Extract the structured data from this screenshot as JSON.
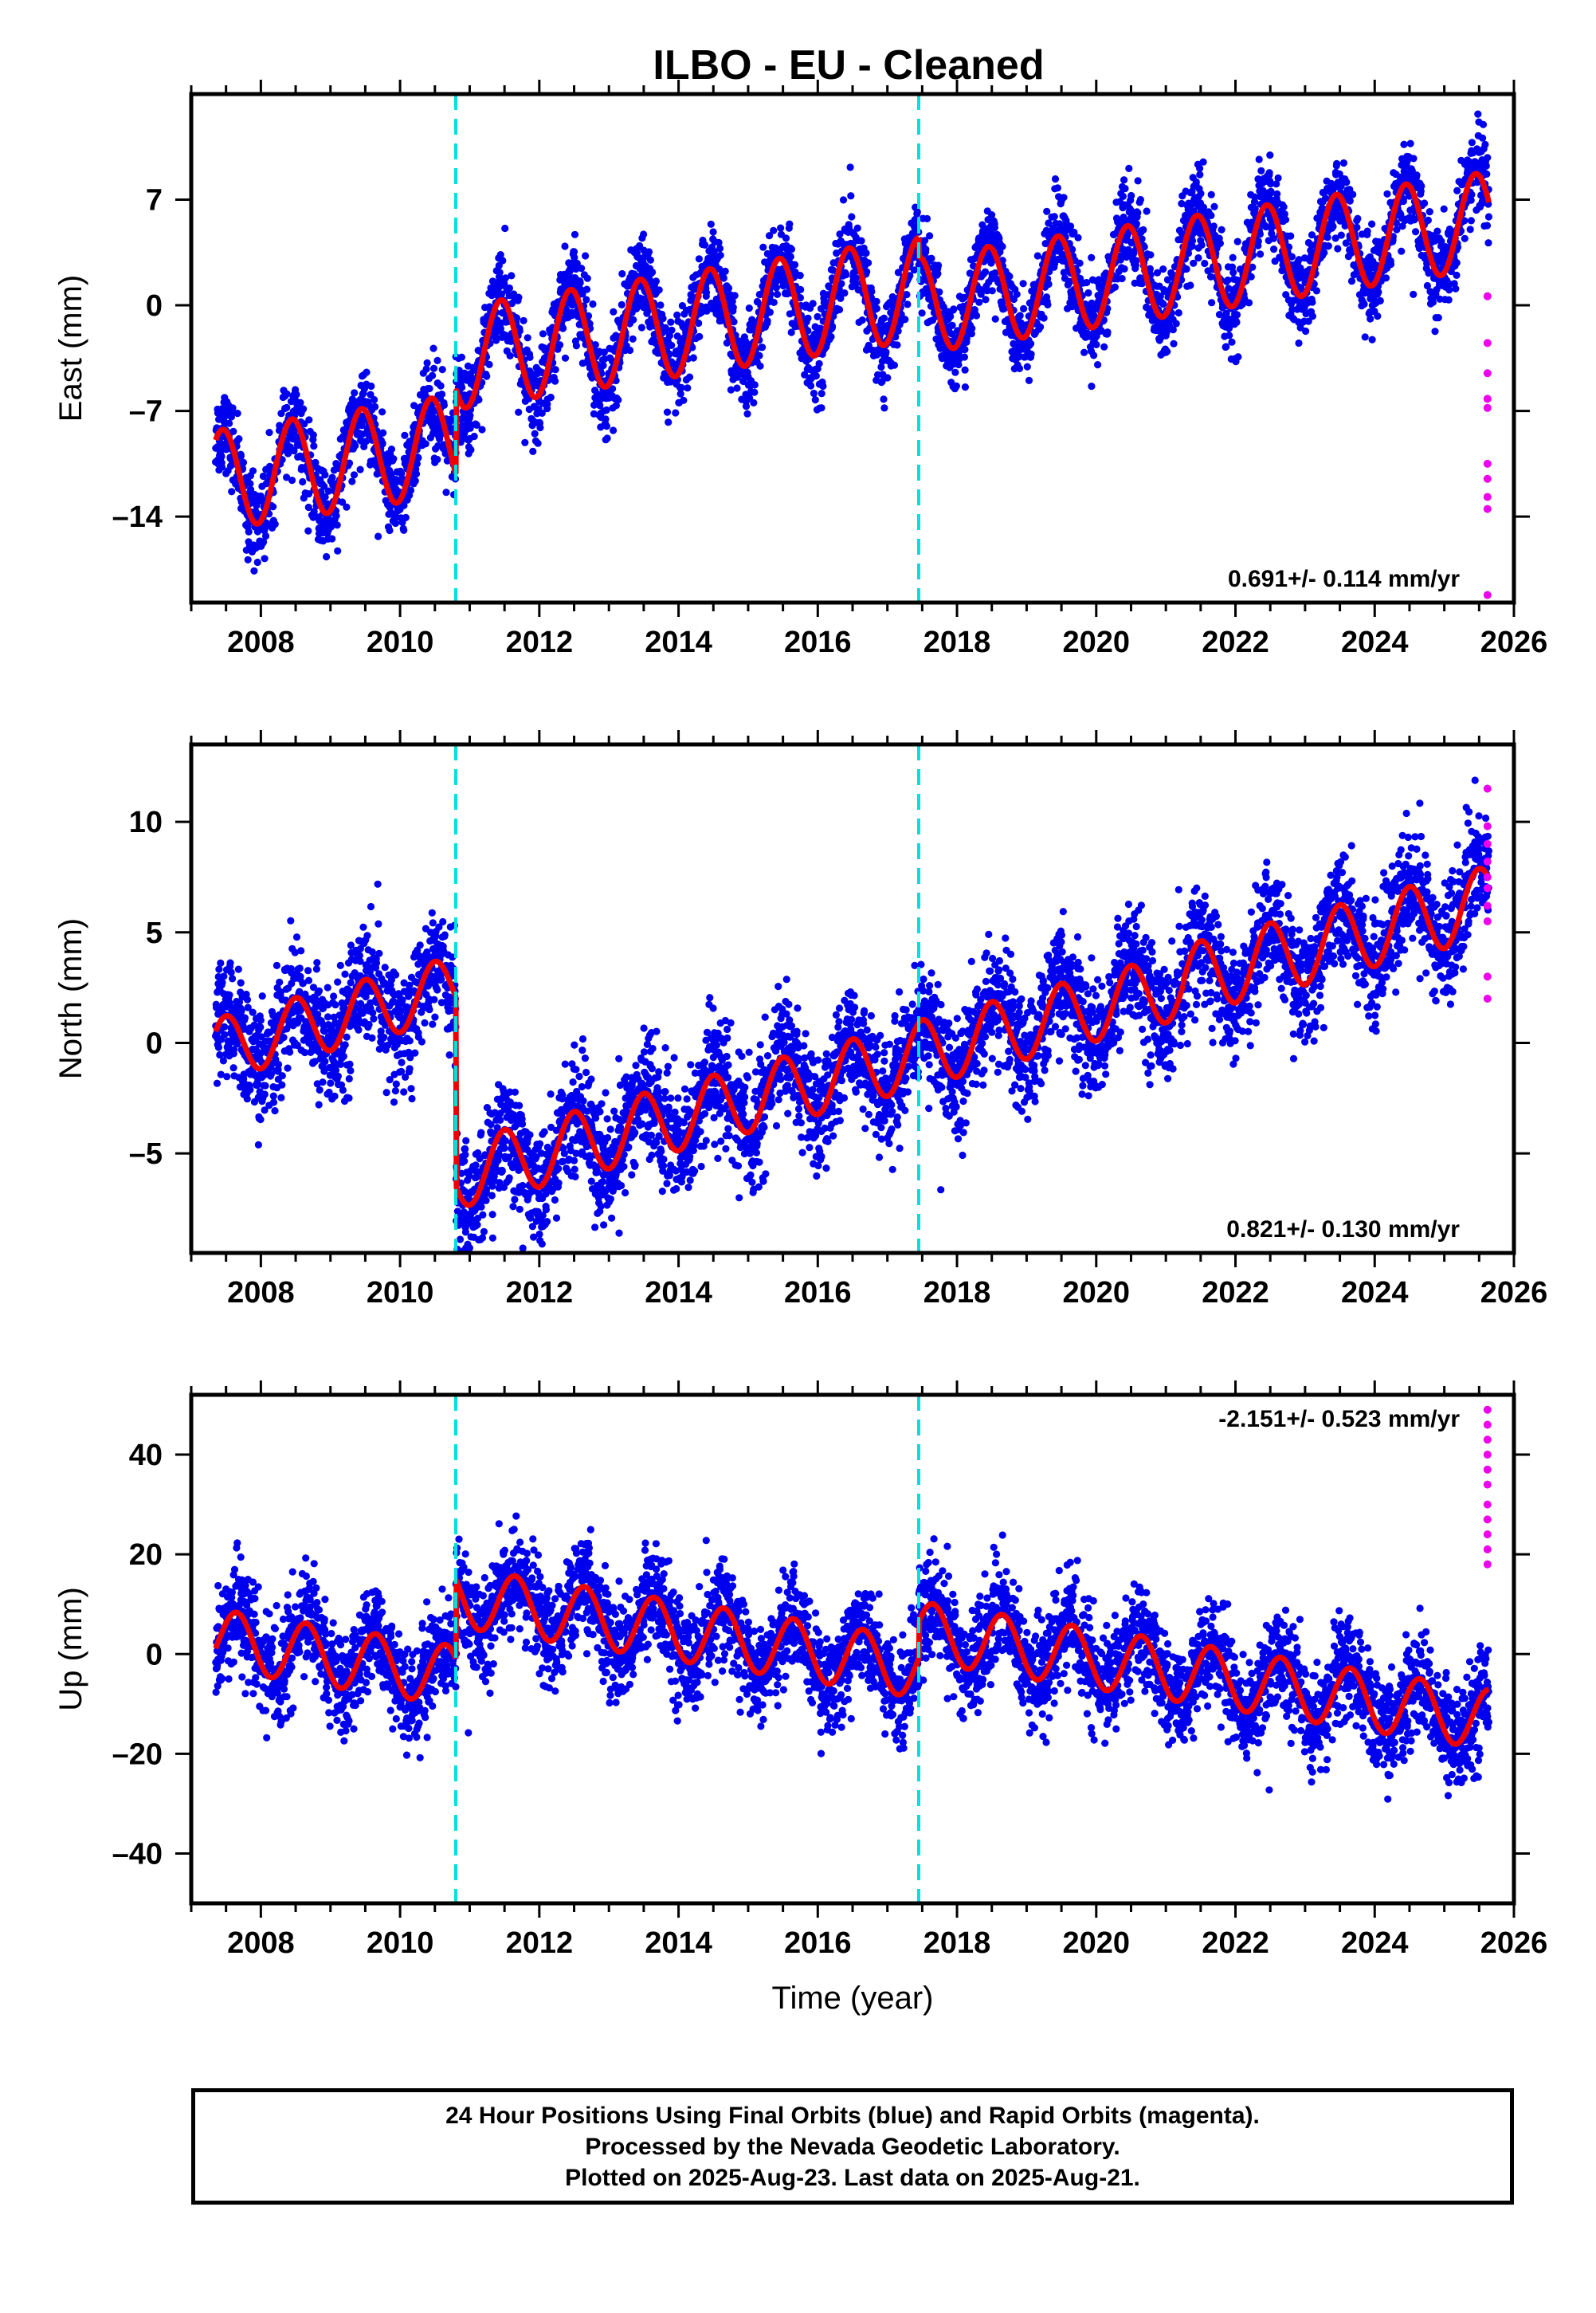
{
  "title": "ILBO  - EU - Cleaned",
  "xlabel": "Time (year)",
  "footer": {
    "line1": "24 Hour Positions Using Final Orbits (blue) and Rapid Orbits (magenta).",
    "line2": "Processed by the Nevada Geodetic Laboratory.",
    "line3": "Plotted on 2025-Aug-23. Last data on 2025-Aug-21."
  },
  "colors": {
    "final_points": "#0000ee",
    "rapid_points": "#ee00ee",
    "model": "#ee0000",
    "event_lines": "#00e0e0",
    "frame": "#000000"
  },
  "chart_data": [
    {
      "type": "scatter",
      "component": "East",
      "ylabel": "East (mm)",
      "xlim": [
        2007.0,
        2026.0
      ],
      "ylim": [
        -19.7,
        14.0
      ],
      "xticks": [
        2008,
        2010,
        2012,
        2014,
        2016,
        2018,
        2020,
        2022,
        2024,
        2026
      ],
      "yticks": [
        -14,
        -7,
        0,
        7
      ],
      "rate_label": "0.691+/- 0.114 mm/yr",
      "rate_position": "bottom-right",
      "offset_epochs": [
        2010.8,
        2017.45
      ],
      "model": {
        "segments": [
          {
            "x_start": 2007.35,
            "x_end": 2010.8,
            "base_at_start": -11.6,
            "slope": 0.69,
            "amplitude": 3.3,
            "peak_phase": 0.45
          },
          {
            "x_start": 2010.8,
            "x_end": 2017.45,
            "base_at_start": -3.5,
            "slope": 0.69,
            "amplitude": 3.4,
            "peak_phase": 0.45
          },
          {
            "x_start": 2017.45,
            "x_end": 2025.64,
            "base_at_start": 0.0,
            "slope": 0.69,
            "amplitude": 3.2,
            "peak_phase": 0.45
          }
        ]
      },
      "final_orbit_scatter_mm": 1.4,
      "rapid_points": {
        "x": 2025.62,
        "y": [
          0.6,
          -2.5,
          -4.5,
          -6.2,
          -6.8,
          -10.5,
          -11.5,
          -12.7,
          -13.5,
          -19.2
        ]
      }
    },
    {
      "type": "scatter",
      "component": "North",
      "ylabel": "North (mm)",
      "xlim": [
        2007.0,
        2026.0
      ],
      "ylim": [
        -9.5,
        13.5
      ],
      "xticks": [
        2008,
        2010,
        2012,
        2014,
        2016,
        2018,
        2020,
        2022,
        2024,
        2026
      ],
      "yticks": [
        -5,
        0,
        5,
        10
      ],
      "rate_label": "0.821+/- 0.130 mm/yr",
      "rate_position": "bottom-right",
      "offset_epochs": [
        2010.8,
        2017.45
      ],
      "model": {
        "segments": [
          {
            "x_start": 2007.35,
            "x_end": 2010.8,
            "base_at_start": -0.3,
            "slope": 0.82,
            "amplitude": 1.4,
            "peak_phase": 0.5
          },
          {
            "x_start": 2010.8,
            "x_end": 2017.45,
            "base_at_start": -6.0,
            "slope": 0.82,
            "amplitude": 1.5,
            "peak_phase": 0.5
          },
          {
            "x_start": 2017.45,
            "x_end": 2021.25,
            "base_at_start": -0.5,
            "slope": 0.82,
            "amplitude": 1.5,
            "peak_phase": 0.5
          },
          {
            "x_start": 2021.25,
            "x_end": 2025.64,
            "base_at_start": 2.8,
            "slope": 0.82,
            "amplitude": 1.6,
            "peak_phase": 0.5
          }
        ]
      },
      "final_orbit_scatter_mm": 1.3,
      "rapid_points": {
        "x": 2025.62,
        "y": [
          11.5,
          9.8,
          9.0,
          8.2,
          7.5,
          7.0,
          6.2,
          5.5,
          3.0,
          2.0
        ]
      }
    },
    {
      "type": "scatter",
      "component": "Up",
      "ylabel": "Up (mm)",
      "xlim": [
        2007.0,
        2026.0
      ],
      "ylim": [
        -50.0,
        52.0
      ],
      "xticks": [
        2008,
        2010,
        2012,
        2014,
        2016,
        2018,
        2020,
        2022,
        2024,
        2026
      ],
      "yticks": [
        -40,
        -20,
        0,
        20,
        40
      ],
      "rate_label": "-2.151+/- 0.523 mm/yr",
      "rate_position": "top-right",
      "offset_epochs": [
        2010.8,
        2017.45
      ],
      "model": {
        "segments": [
          {
            "x_start": 2007.35,
            "x_end": 2010.8,
            "base_at_start": 3.0,
            "slope": -2.15,
            "amplitude": 6.0,
            "peak_phase": 0.65
          },
          {
            "x_start": 2010.8,
            "x_end": 2017.45,
            "base_at_start": 11.5,
            "slope": -2.15,
            "amplitude": 6.0,
            "peak_phase": 0.65
          },
          {
            "x_start": 2017.45,
            "x_end": 2025.64,
            "base_at_start": 4.5,
            "slope": -2.15,
            "amplitude": 6.0,
            "peak_phase": 0.65
          }
        ]
      },
      "final_orbit_scatter_mm": 5.0,
      "rapid_points": {
        "x": 2025.62,
        "y": [
          49,
          46,
          43,
          40,
          37,
          34,
          30,
          27,
          24,
          21,
          18
        ]
      }
    }
  ]
}
